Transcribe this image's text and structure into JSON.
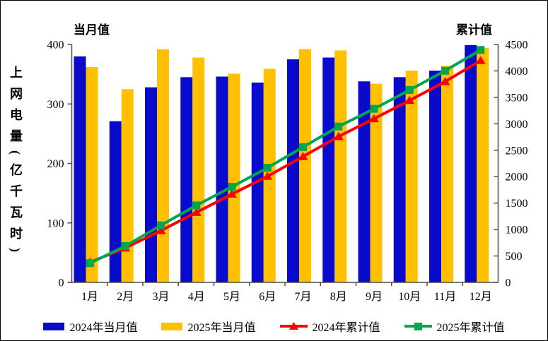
{
  "frame": {
    "background": "#FFFFFF",
    "border_color": "#000000",
    "axis_color": "#4D4D4D",
    "text_color": "#000000"
  },
  "titles": {
    "left_title": "当月值",
    "right_title": "累计值",
    "y_axis_label": "上网电量(亿千瓦时)"
  },
  "chart_data": {
    "type": "bar",
    "subtype": "grouped bars with cumulative lines (dual axis combo)",
    "title": "",
    "xlabel": "",
    "ylabel": "上网电量(亿千瓦时)",
    "grid": false,
    "legend_position": "bottom",
    "categories": [
      "1月",
      "2月",
      "3月",
      "4月",
      "5月",
      "6月",
      "7月",
      "8月",
      "9月",
      "10月",
      "11月",
      "12月"
    ],
    "left_axis": {
      "min": 0,
      "max": 400,
      "step": 100,
      "corner_label": "当月值"
    },
    "right_axis": {
      "min": 0,
      "max": 4500,
      "step": 500,
      "corner_label": "累计值"
    },
    "series": [
      {
        "name": "2024年当月值",
        "type": "bar",
        "axis": "left",
        "color": "#0A0ACC",
        "values": [
          380,
          271,
          328,
          345,
          346,
          336,
          375,
          378,
          338,
          345,
          356,
          399
        ]
      },
      {
        "name": "2025年当月值",
        "type": "bar",
        "axis": "left",
        "color": "#FFC000",
        "values": [
          362,
          325,
          392,
          378,
          351,
          359,
          392,
          390,
          334,
          356,
          364,
          394
        ]
      },
      {
        "name": "2024年累计值",
        "type": "line",
        "axis": "right",
        "color": "#FF0000",
        "marker": "triangle",
        "values": [
          380,
          651,
          979,
          1324,
          1670,
          2006,
          2381,
          2759,
          3097,
          3442,
          3798,
          4197
        ]
      },
      {
        "name": "2025年累计值",
        "type": "line",
        "axis": "right",
        "color": "#00A550",
        "marker": "square",
        "values": [
          362,
          687,
          1079,
          1457,
          1808,
          2167,
          2559,
          2949,
          3283,
          3639,
          4003,
          4397
        ]
      }
    ]
  }
}
